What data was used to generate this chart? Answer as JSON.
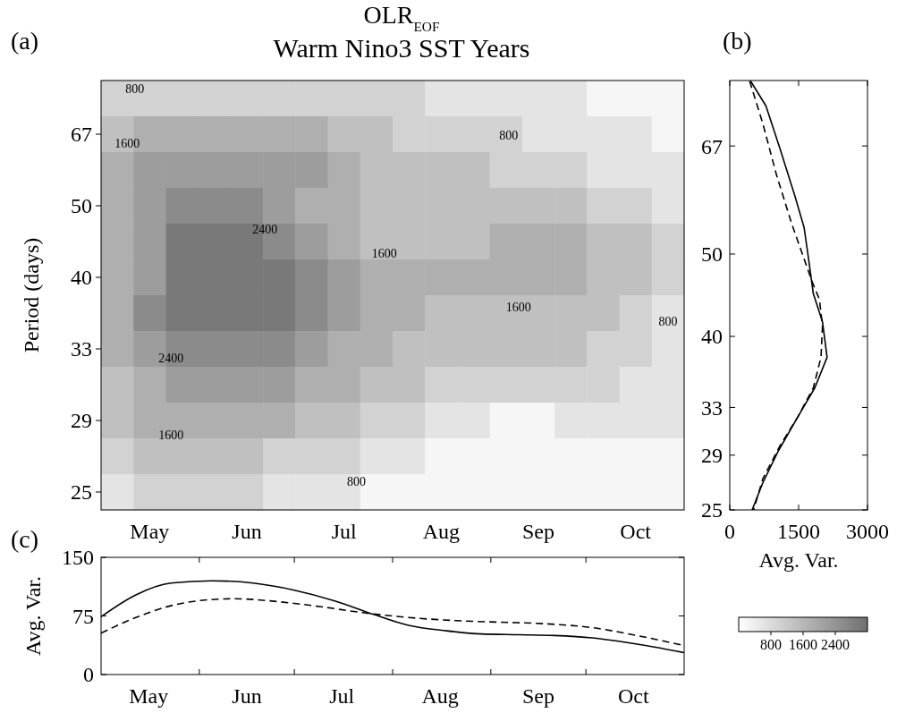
{
  "chart_data": [
    {
      "type": "heatmap",
      "title": "OLR$_{EOF}$",
      "subtitle": "Warm Nino3 SST Years",
      "ylabel": "Period (days)",
      "categories": [
        null,
        "May",
        null,
        null,
        "Jun",
        null,
        null,
        "Jul",
        null,
        null,
        "Aug",
        null,
        null,
        "Sep",
        null,
        null,
        "Oct",
        null
      ],
      "y_categories": [
        null,
        "67",
        null,
        "50",
        null,
        "40",
        null,
        "33",
        null,
        "29",
        null,
        "25"
      ],
      "clim": [
        0,
        3200
      ],
      "cticks": [
        800,
        1600,
        2400
      ],
      "cells": [
        [
          1000,
          1000,
          1000,
          1000,
          1000,
          1000,
          1000,
          1000,
          1000,
          1000,
          600,
          600,
          600,
          600,
          600,
          200,
          200,
          200
        ],
        [
          1400,
          1800,
          1800,
          1800,
          1800,
          1800,
          1800,
          1400,
          1400,
          1000,
          1000,
          1000,
          1000,
          600,
          600,
          600,
          600,
          200
        ],
        [
          1800,
          2200,
          2200,
          2200,
          2200,
          2200,
          2200,
          1800,
          1400,
          1400,
          1400,
          1400,
          1000,
          1000,
          1000,
          600,
          600,
          600
        ],
        [
          1800,
          2200,
          2600,
          2600,
          2600,
          2200,
          1800,
          1800,
          1400,
          1400,
          1400,
          1400,
          1400,
          1400,
          1400,
          1000,
          1000,
          600
        ],
        [
          1800,
          2200,
          3000,
          3000,
          3000,
          2600,
          2200,
          1800,
          1400,
          1400,
          1400,
          1400,
          1800,
          1800,
          1800,
          1400,
          1400,
          1000
        ],
        [
          1800,
          2200,
          3000,
          3000,
          3000,
          3000,
          2600,
          2200,
          1800,
          1800,
          1800,
          1800,
          1800,
          1800,
          1800,
          1400,
          1400,
          1000
        ],
        [
          1800,
          2600,
          3000,
          3000,
          3000,
          3000,
          2600,
          2200,
          1800,
          1800,
          1400,
          1400,
          1400,
          1400,
          1400,
          1400,
          1000,
          600
        ],
        [
          1800,
          2200,
          2600,
          2600,
          2600,
          2600,
          2200,
          1800,
          1800,
          1400,
          1400,
          1400,
          1400,
          1400,
          1400,
          1000,
          1000,
          600
        ],
        [
          1400,
          1800,
          2200,
          2200,
          2200,
          2200,
          1800,
          1800,
          1400,
          1400,
          1000,
          1000,
          1000,
          1000,
          1000,
          1000,
          600,
          600
        ],
        [
          1400,
          1800,
          1800,
          1800,
          1800,
          1800,
          1400,
          1400,
          1000,
          1000,
          600,
          600,
          200,
          200,
          600,
          600,
          600,
          600
        ],
        [
          1000,
          1400,
          1400,
          1400,
          1400,
          1000,
          1000,
          1000,
          600,
          600,
          200,
          200,
          200,
          200,
          200,
          200,
          200,
          200
        ],
        [
          600,
          1000,
          1000,
          1000,
          1000,
          600,
          600,
          600,
          200,
          200,
          200,
          200,
          200,
          200,
          200,
          200,
          200,
          200
        ]
      ],
      "annotations": [
        "(a)",
        "800",
        "1600",
        "2400",
        "800",
        "1600",
        "1600",
        "800",
        "2400",
        "1600",
        "800"
      ]
    },
    {
      "type": "line",
      "xlabel": "Avg. Var.",
      "xlim": [
        0,
        3000
      ],
      "xticks": [
        0,
        1500,
        3000
      ],
      "ylim": [
        25,
        80
      ],
      "log": "y",
      "yticks": [
        25,
        29,
        33,
        40,
        50,
        67
      ],
      "series": [
        {
          "color": "#000000",
          "line_style": "solid",
          "x": [
            453,
            787,
            1087,
            1420,
            1620,
            1720,
            1820,
            2020,
            2120,
            1853,
            1487,
            1053,
            720,
            487
          ],
          "values": [
            79.9,
            74.7,
            66.7,
            58.5,
            53.7,
            49.2,
            44.9,
            41.6,
            37.8,
            34.8,
            32.2,
            29.3,
            26.9,
            25
          ]
        },
        {
          "color": "#000000",
          "line_style": "dashed",
          "x": [
            433,
            720,
            1020,
            1353,
            1787,
            1953,
            2020,
            1987,
            1820,
            1487,
            1087,
            720,
            520
          ],
          "values": [
            79.9,
            71.2,
            61.9,
            54.2,
            46.5,
            44.2,
            41.1,
            37.8,
            34.8,
            32.2,
            29.7,
            27.2,
            25
          ]
        }
      ],
      "annotations": [
        "(b)"
      ]
    },
    {
      "type": "line",
      "ylabel": "Avg. Var.",
      "xlim": [
        "--05-01",
        "--11-01"
      ],
      "xticks": [
        {
          "value": "--05-16",
          "label": "May"
        },
        {
          "value": "--06-01",
          "label": null
        },
        {
          "value": "--06-16",
          "label": "Jun"
        },
        {
          "value": "--07-01",
          "label": null
        },
        {
          "value": "--07-16",
          "label": "Jul"
        },
        {
          "value": "--08-01",
          "label": null
        },
        {
          "value": "--08-16",
          "label": "Aug"
        },
        {
          "value": "--09-01",
          "label": null
        },
        {
          "value": "--09-16",
          "label": "Sep"
        },
        {
          "value": "--10-01",
          "label": null
        },
        {
          "value": "--10-16",
          "label": "Oct"
        }
      ],
      "ylim": [
        0,
        150
      ],
      "yticks": [
        0,
        75,
        150
      ],
      "series": [
        {
          "color": "#000000",
          "line_style": "solid",
          "x": [
            "--05-01",
            "--05-12",
            "--05-23",
            "--06-05",
            "--06-18",
            "--07-01",
            "--07-14",
            "--07-26",
            "--08-06",
            "--08-18",
            "--08-29",
            "--09-10",
            "--09-21",
            "--10-03",
            "--10-14",
            "--10-23",
            "--11-01"
          ],
          "values": [
            74,
            102,
            117,
            120,
            117,
            108,
            94,
            77,
            63,
            56,
            52,
            51,
            50,
            47,
            41,
            35,
            28
          ]
        },
        {
          "color": "#000000",
          "line_style": "dashed",
          "x": [
            "--05-01",
            "--05-12",
            "--05-23",
            "--06-02",
            "--06-12",
            "--06-24",
            "--07-09",
            "--07-23",
            "--08-06",
            "--08-21",
            "--09-04",
            "--09-18",
            "--10-03",
            "--10-17",
            "--11-01"
          ],
          "values": [
            53,
            73,
            88,
            95,
            97,
            94,
            87,
            79,
            73,
            69,
            67,
            65,
            60,
            50,
            37
          ]
        }
      ],
      "annotations": [
        "(c)"
      ]
    }
  ]
}
